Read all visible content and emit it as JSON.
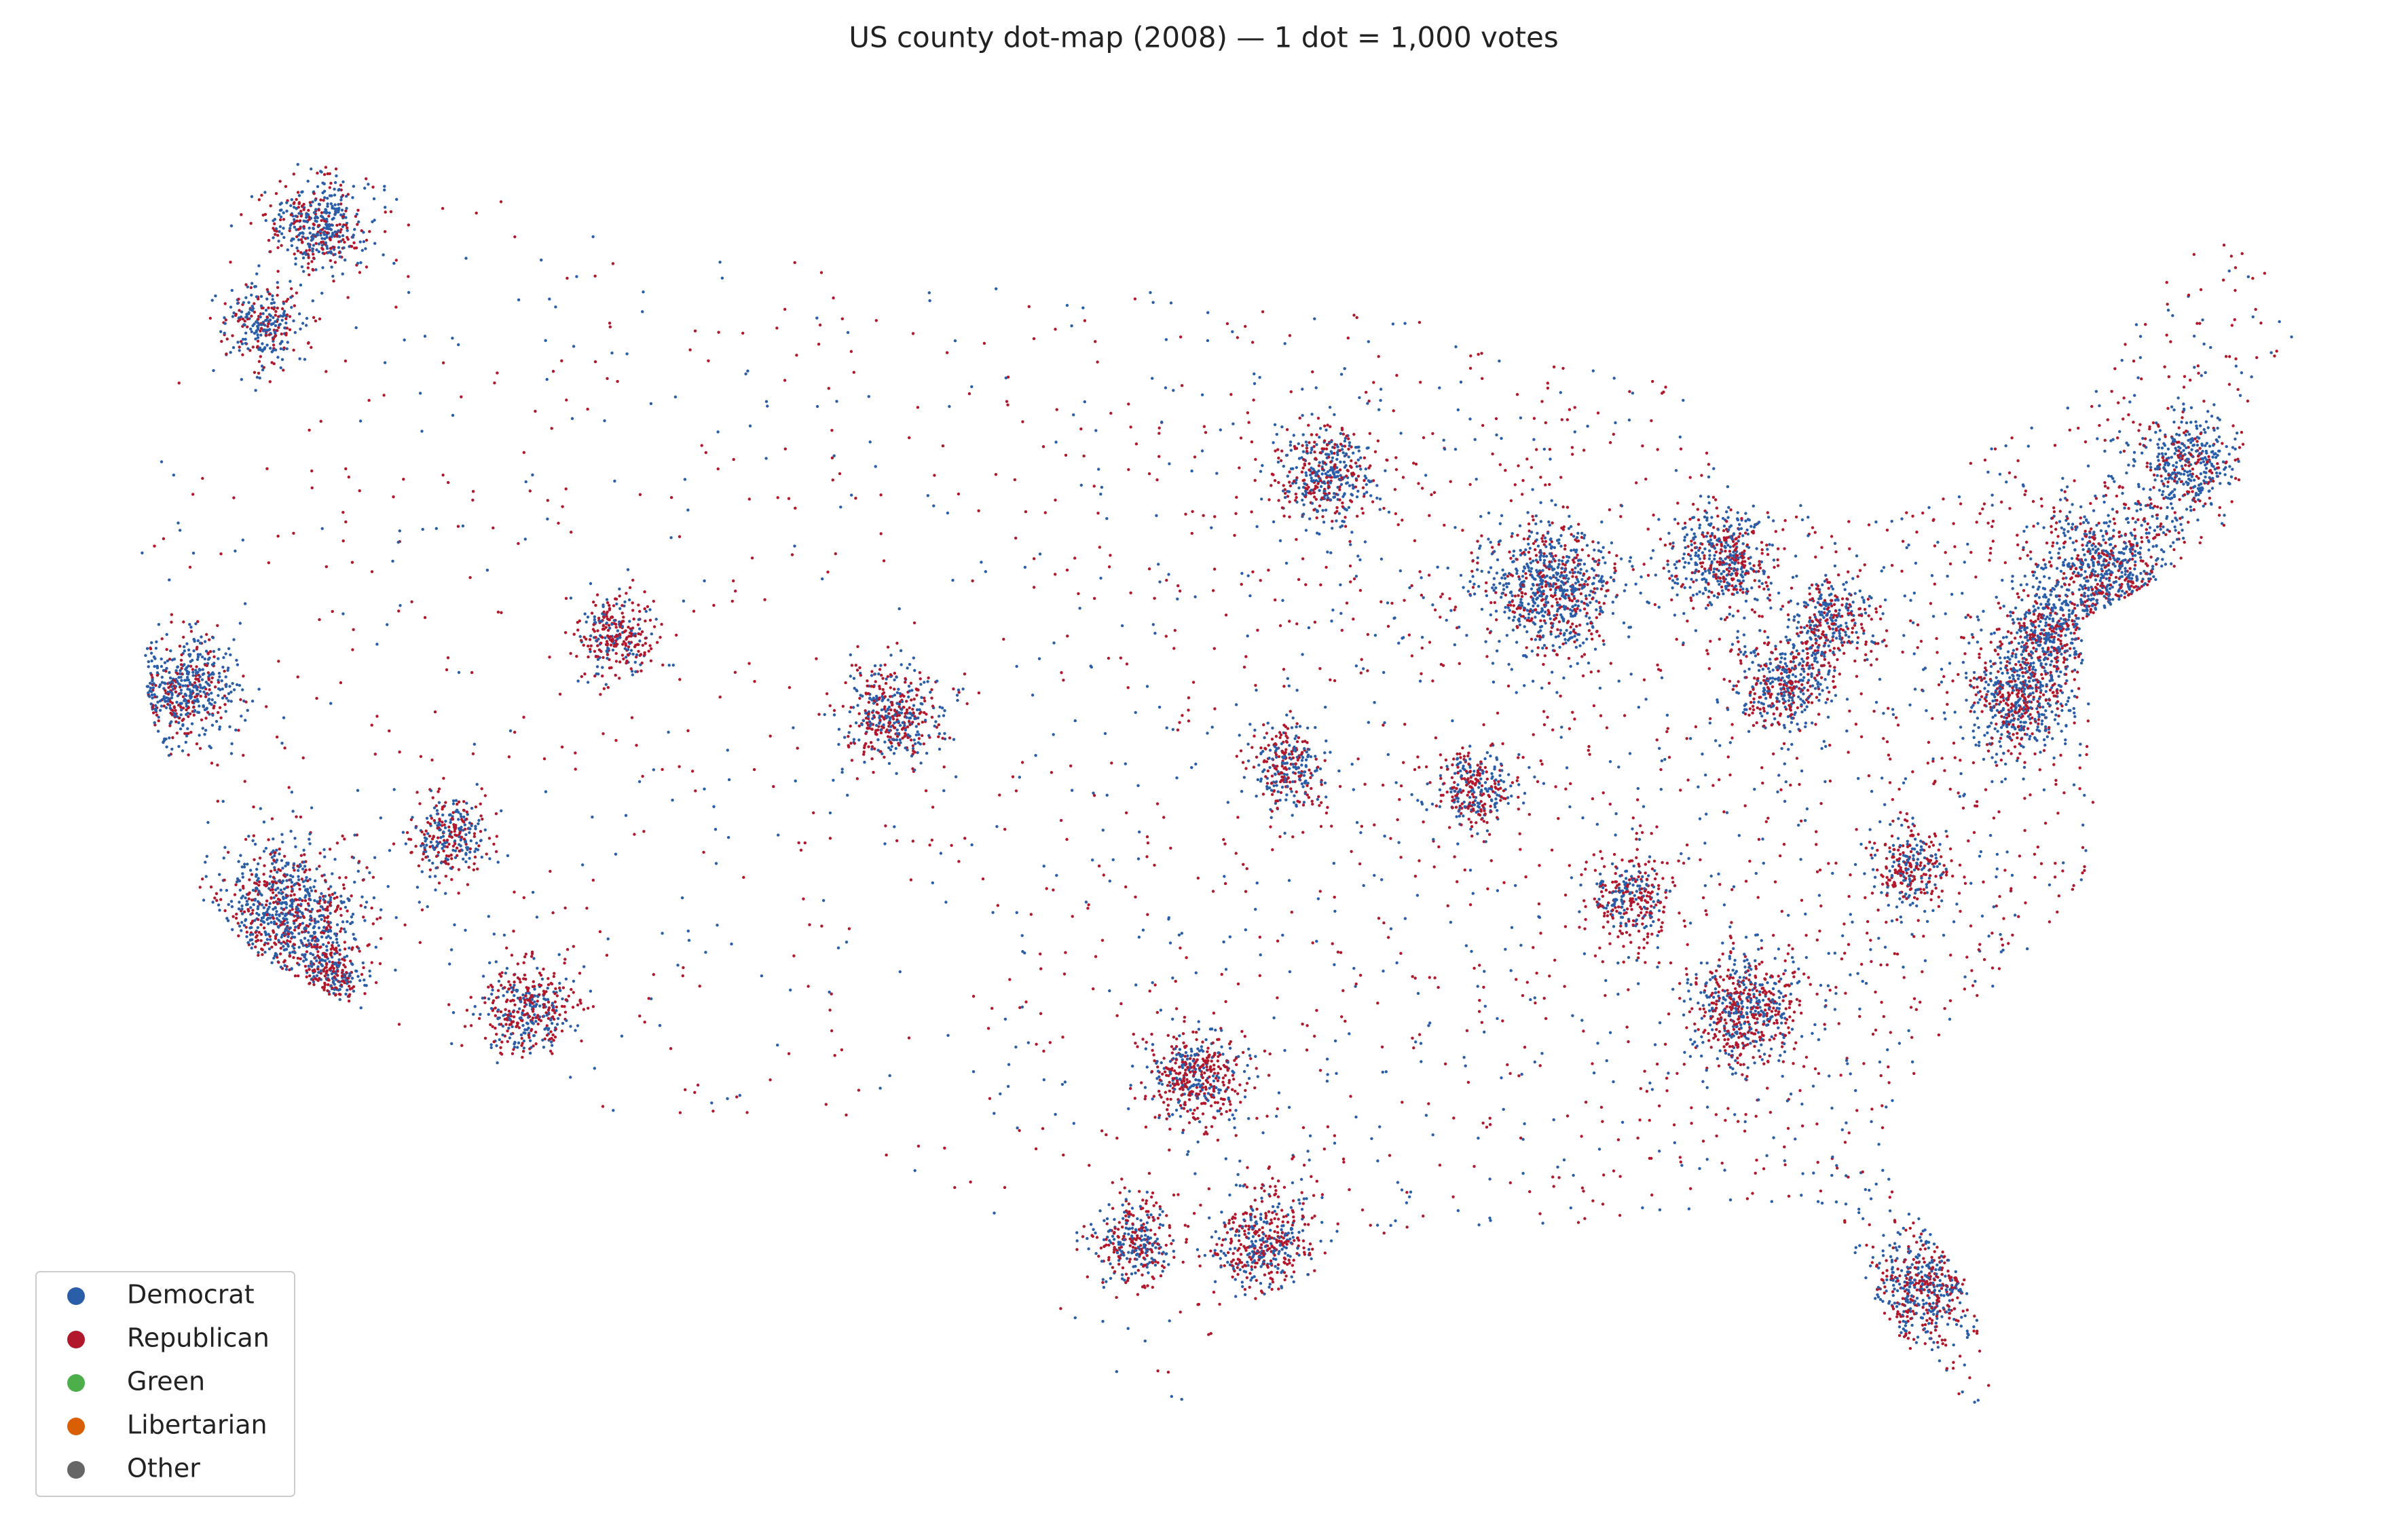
{
  "title": "US county dot-map (2008) — 1 dot = 1,000 votes",
  "legend": {
    "entries": [
      {
        "name": "Democrat",
        "color": "#2a5ea8"
      },
      {
        "name": "Republican",
        "color": "#b2182b"
      },
      {
        "name": "Green",
        "color": "#4daf4a"
      },
      {
        "name": "Libertarian",
        "color": "#d95f02"
      },
      {
        "name": "Other",
        "color": "#666666"
      }
    ]
  }
}
